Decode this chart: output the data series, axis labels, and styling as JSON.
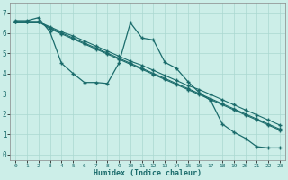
{
  "title": "",
  "xlabel": "Humidex (Indice chaleur)",
  "bg_color": "#cceee8",
  "grid_color": "#aad8d0",
  "line_color": "#1a6b6b",
  "xlim": [
    -0.5,
    23.5
  ],
  "ylim": [
    -0.3,
    7.5
  ],
  "xticks": [
    0,
    1,
    2,
    3,
    4,
    5,
    6,
    7,
    8,
    9,
    10,
    11,
    12,
    13,
    14,
    15,
    16,
    17,
    18,
    19,
    20,
    21,
    22,
    23
  ],
  "yticks": [
    0,
    1,
    2,
    3,
    4,
    5,
    6,
    7
  ],
  "line1_x": [
    0,
    1,
    2,
    3,
    4,
    5,
    6,
    7,
    8,
    9,
    10,
    11,
    12,
    13,
    14,
    15,
    16,
    17,
    18,
    19,
    20,
    21,
    22,
    23
  ],
  "line1_y": [
    6.6,
    6.6,
    6.75,
    6.05,
    4.5,
    4.0,
    3.55,
    3.55,
    3.5,
    4.5,
    6.5,
    5.75,
    5.65,
    4.55,
    4.25,
    3.6,
    3.05,
    2.65,
    1.5,
    1.1,
    0.8,
    0.38,
    0.32,
    0.32
  ],
  "line2_x": [
    0,
    1,
    2,
    3,
    4,
    5,
    6,
    7,
    8,
    9,
    10,
    11,
    12,
    13,
    14,
    15,
    16,
    17,
    18,
    19,
    20,
    21,
    22,
    23
  ],
  "line2_y": [
    6.55,
    6.55,
    6.55,
    6.3,
    6.05,
    5.85,
    5.6,
    5.35,
    5.1,
    4.85,
    4.6,
    4.4,
    4.15,
    3.9,
    3.65,
    3.4,
    3.2,
    2.95,
    2.7,
    2.45,
    2.2,
    1.95,
    1.7,
    1.45
  ],
  "line3_x": [
    0,
    1,
    2,
    3,
    4,
    5,
    6,
    7,
    8,
    9,
    10,
    11,
    12,
    13,
    14,
    15,
    16,
    17,
    18,
    19,
    20,
    21,
    22,
    23
  ],
  "line3_y": [
    6.55,
    6.55,
    6.55,
    6.25,
    6.0,
    5.75,
    5.5,
    5.25,
    5.0,
    4.75,
    4.5,
    4.25,
    4.0,
    3.75,
    3.5,
    3.25,
    3.0,
    2.75,
    2.5,
    2.25,
    2.0,
    1.75,
    1.5,
    1.25
  ],
  "line4_x": [
    0,
    1,
    2,
    3,
    4,
    5,
    6,
    7,
    8,
    9,
    10,
    11,
    12,
    13,
    14,
    15,
    16,
    17,
    18,
    19,
    20,
    21,
    22,
    23
  ],
  "line4_y": [
    6.55,
    6.55,
    6.55,
    6.2,
    5.95,
    5.7,
    5.45,
    5.2,
    4.95,
    4.7,
    4.45,
    4.2,
    3.95,
    3.7,
    3.45,
    3.2,
    2.95,
    2.7,
    2.45,
    2.2,
    1.95,
    1.7,
    1.45,
    1.2
  ]
}
